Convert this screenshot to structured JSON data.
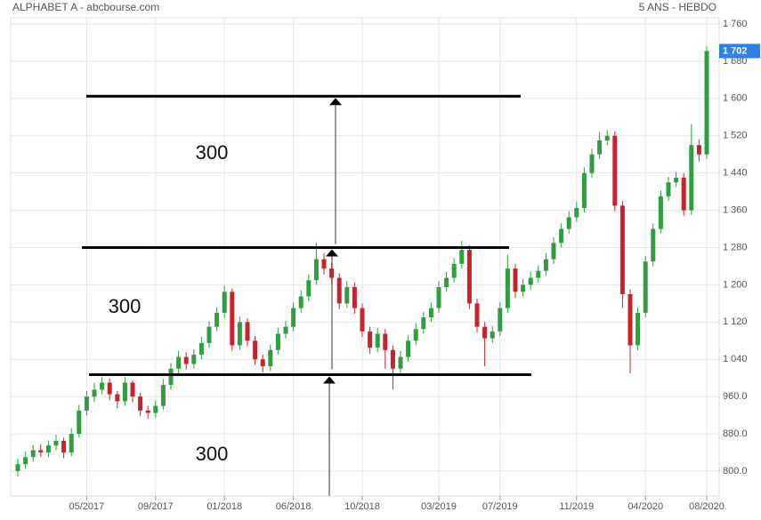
{
  "chart_data": {
    "type": "candlestick",
    "title": "ALPHABET A - abcbourse.com",
    "subtitle": "5 ANS - HEBDO",
    "categories": [
      null,
      null,
      null,
      null,
      null,
      null,
      null,
      null,
      null,
      "05/2017",
      null,
      null,
      null,
      null,
      null,
      null,
      null,
      null,
      "09/2017",
      null,
      null,
      null,
      null,
      null,
      null,
      null,
      null,
      "01/2018",
      null,
      null,
      null,
      null,
      null,
      null,
      null,
      null,
      "06/2018",
      null,
      null,
      null,
      null,
      null,
      null,
      null,
      null,
      "10/2018",
      null,
      null,
      null,
      null,
      null,
      null,
      null,
      null,
      null,
      "03/2019",
      null,
      null,
      null,
      null,
      null,
      null,
      null,
      "07/2019",
      null,
      null,
      null,
      null,
      null,
      null,
      null,
      null,
      null,
      "11/2019",
      null,
      null,
      null,
      null,
      null,
      null,
      null,
      null,
      "04/2020",
      null,
      null,
      null,
      null,
      null,
      null,
      null,
      "08/2020"
    ],
    "candles": [
      [
        800,
        828,
        788,
        815
      ],
      [
        815,
        842,
        805,
        830
      ],
      [
        830,
        856,
        820,
        845
      ],
      [
        845,
        858,
        830,
        840
      ],
      [
        840,
        866,
        830,
        855
      ],
      [
        855,
        878,
        845,
        865
      ],
      [
        865,
        872,
        828,
        840
      ],
      [
        840,
        892,
        832,
        880
      ],
      [
        880,
        942,
        872,
        930
      ],
      [
        930,
        972,
        920,
        960
      ],
      [
        960,
        990,
        948,
        975
      ],
      [
        975,
        1002,
        965,
        990
      ],
      [
        990,
        998,
        952,
        965
      ],
      [
        965,
        972,
        935,
        950
      ],
      [
        950,
        1002,
        940,
        990
      ],
      [
        990,
        995,
        948,
        960
      ],
      [
        960,
        968,
        918,
        930
      ],
      [
        930,
        940,
        912,
        925
      ],
      [
        925,
        952,
        915,
        940
      ],
      [
        940,
        998,
        932,
        985
      ],
      [
        985,
        1032,
        975,
        1020
      ],
      [
        1020,
        1058,
        1010,
        1045
      ],
      [
        1045,
        1055,
        1018,
        1030
      ],
      [
        1030,
        1062,
        1020,
        1050
      ],
      [
        1050,
        1088,
        1040,
        1075
      ],
      [
        1075,
        1122,
        1065,
        1110
      ],
      [
        1110,
        1152,
        1100,
        1140
      ],
      [
        1140,
        1198,
        1130,
        1185
      ],
      [
        1185,
        1192,
        1058,
        1070
      ],
      [
        1070,
        1132,
        1060,
        1120
      ],
      [
        1120,
        1128,
        1068,
        1080
      ],
      [
        1080,
        1090,
        1028,
        1040
      ],
      [
        1040,
        1050,
        1012,
        1025
      ],
      [
        1025,
        1072,
        1015,
        1060
      ],
      [
        1060,
        1108,
        1050,
        1095
      ],
      [
        1095,
        1122,
        1085,
        1110
      ],
      [
        1110,
        1162,
        1100,
        1150
      ],
      [
        1150,
        1188,
        1140,
        1175
      ],
      [
        1175,
        1222,
        1165,
        1210
      ],
      [
        1210,
        1290,
        1200,
        1255
      ],
      [
        1255,
        1268,
        1222,
        1235
      ],
      [
        1235,
        1248,
        1202,
        1215
      ],
      [
        1215,
        1225,
        1148,
        1160
      ],
      [
        1160,
        1208,
        1150,
        1195
      ],
      [
        1195,
        1205,
        1138,
        1150
      ],
      [
        1150,
        1160,
        1088,
        1100
      ],
      [
        1100,
        1110,
        1052,
        1065
      ],
      [
        1065,
        1108,
        1055,
        1095
      ],
      [
        1095,
        1105,
        1020,
        1060
      ],
      [
        1060,
        1070,
        975,
        1020
      ],
      [
        1020,
        1058,
        1010,
        1045
      ],
      [
        1045,
        1092,
        1035,
        1080
      ],
      [
        1080,
        1118,
        1070,
        1105
      ],
      [
        1105,
        1142,
        1095,
        1130
      ],
      [
        1130,
        1162,
        1120,
        1150
      ],
      [
        1150,
        1208,
        1140,
        1195
      ],
      [
        1195,
        1228,
        1185,
        1215
      ],
      [
        1215,
        1258,
        1205,
        1245
      ],
      [
        1245,
        1295,
        1235,
        1275
      ],
      [
        1275,
        1285,
        1148,
        1160
      ],
      [
        1160,
        1170,
        1098,
        1110
      ],
      [
        1110,
        1120,
        1025,
        1085
      ],
      [
        1085,
        1112,
        1075,
        1100
      ],
      [
        1100,
        1162,
        1090,
        1150
      ],
      [
        1150,
        1265,
        1140,
        1235
      ],
      [
        1235,
        1245,
        1172,
        1185
      ],
      [
        1185,
        1212,
        1175,
        1200
      ],
      [
        1200,
        1228,
        1190,
        1215
      ],
      [
        1215,
        1242,
        1205,
        1230
      ],
      [
        1230,
        1268,
        1220,
        1255
      ],
      [
        1255,
        1302,
        1245,
        1290
      ],
      [
        1290,
        1332,
        1280,
        1320
      ],
      [
        1320,
        1358,
        1310,
        1345
      ],
      [
        1345,
        1378,
        1335,
        1365
      ],
      [
        1365,
        1452,
        1355,
        1440
      ],
      [
        1440,
        1492,
        1430,
        1480
      ],
      [
        1480,
        1528,
        1470,
        1510
      ],
      [
        1510,
        1532,
        1500,
        1520
      ],
      [
        1520,
        1530,
        1358,
        1370
      ],
      [
        1370,
        1380,
        1150,
        1180
      ],
      [
        1180,
        1190,
        1010,
        1070
      ],
      [
        1070,
        1152,
        1060,
        1140
      ],
      [
        1140,
        1262,
        1130,
        1250
      ],
      [
        1250,
        1332,
        1240,
        1320
      ],
      [
        1320,
        1402,
        1310,
        1390
      ],
      [
        1390,
        1432,
        1380,
        1420
      ],
      [
        1420,
        1442,
        1410,
        1430
      ],
      [
        1430,
        1440,
        1348,
        1360
      ],
      [
        1360,
        1545,
        1350,
        1500
      ],
      [
        1500,
        1512,
        1465,
        1480
      ],
      [
        1480,
        1712,
        1470,
        1702
      ]
    ],
    "up_color": "#2e9e3e",
    "down_color": "#c8232c",
    "ylim": [
      800,
      1760
    ],
    "yticks": [
      {
        "value": 800,
        "label": "800.0"
      },
      {
        "value": 880,
        "label": "880.0"
      },
      {
        "value": 960,
        "label": "960.0"
      },
      {
        "value": 1040,
        "label": "1 040"
      },
      {
        "value": 1120,
        "label": "1 120"
      },
      {
        "value": 1200,
        "label": "1 200"
      },
      {
        "value": 1280,
        "label": "1 280"
      },
      {
        "value": 1360,
        "label": "1 360"
      },
      {
        "value": 1440,
        "label": "1 440"
      },
      {
        "value": 1520,
        "label": "1 520"
      },
      {
        "value": 1600,
        "label": "1 600"
      },
      {
        "value": 1680,
        "label": "1 680"
      },
      {
        "value": 1760,
        "label": "1 760"
      }
    ],
    "last_price": {
      "value": 1702,
      "label": "1 702"
    },
    "grid": true,
    "levels": [
      1007,
      1280,
      1605
    ],
    "annotations": [
      "300",
      "300",
      "300"
    ]
  }
}
